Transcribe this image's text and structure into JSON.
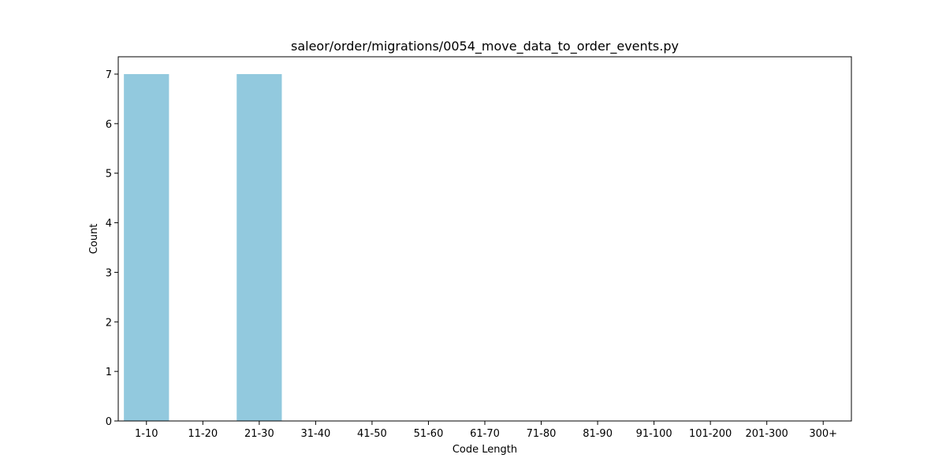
{
  "chart_data": {
    "type": "bar",
    "title": "saleor/order/migrations/0054_move_data_to_order_events.py",
    "xlabel": "Code Length",
    "ylabel": "Count",
    "categories": [
      "1-10",
      "11-20",
      "21-30",
      "31-40",
      "41-50",
      "51-60",
      "61-70",
      "71-80",
      "81-90",
      "91-100",
      "101-200",
      "201-300",
      "300+"
    ],
    "values": [
      7,
      0,
      7,
      0,
      0,
      0,
      0,
      0,
      0,
      0,
      0,
      0,
      0
    ],
    "ylim": [
      0,
      7.35
    ],
    "yticks": [
      0,
      1,
      2,
      3,
      4,
      5,
      6,
      7
    ],
    "grid": false,
    "bar_color": "#92c9de"
  }
}
